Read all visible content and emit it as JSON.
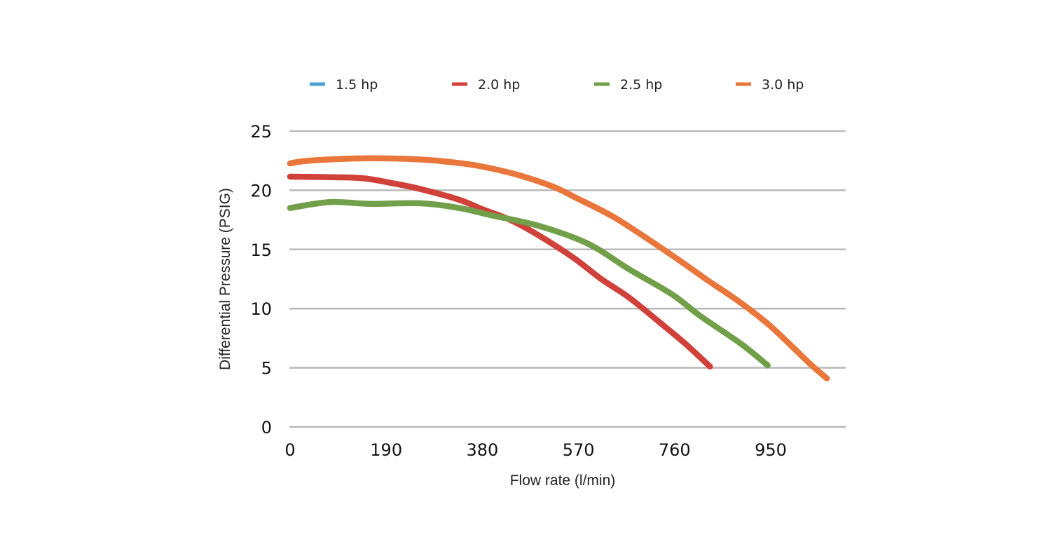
{
  "chart_data": {
    "type": "line",
    "title": "",
    "xlabel": "Flow rate (l/min)",
    "ylabel": "Differential Pressure (PSIG)",
    "xlim": [
      0,
      1100
    ],
    "ylim": [
      0,
      25
    ],
    "x_ticks": [
      "0",
      "190",
      "380",
      "570",
      "760",
      "950"
    ],
    "x_tick_values": [
      0,
      190,
      380,
      570,
      760,
      950
    ],
    "y_ticks": [
      "0",
      "5",
      "10",
      "15",
      "20",
      "25"
    ],
    "y_tick_values": [
      0,
      5,
      10,
      15,
      20,
      25
    ],
    "grid": "horizontal",
    "legend_position": "top",
    "series": [
      {
        "name": "1.5 hp",
        "color": "#4a9fd4",
        "points": []
      },
      {
        "name": "2.0 hp",
        "color": "#d0413a",
        "points": [
          [
            0,
            21.15
          ],
          [
            91,
            21.1
          ],
          [
            147,
            21.0
          ],
          [
            202,
            20.6
          ],
          [
            258,
            20.1
          ],
          [
            334,
            19.2
          ],
          [
            380,
            18.4
          ],
          [
            435,
            17.5
          ],
          [
            491,
            16.2
          ],
          [
            560,
            14.3
          ],
          [
            615,
            12.5
          ],
          [
            671,
            10.9
          ],
          [
            740,
            8.5
          ],
          [
            782,
            7.0
          ],
          [
            830,
            5.1
          ]
        ]
      },
      {
        "name": "2.5 hp",
        "color": "#72a04a",
        "points": [
          [
            0,
            18.5
          ],
          [
            79,
            19.0
          ],
          [
            160,
            18.85
          ],
          [
            258,
            18.9
          ],
          [
            334,
            18.5
          ],
          [
            396,
            17.9
          ],
          [
            491,
            17.0
          ],
          [
            588,
            15.5
          ],
          [
            671,
            13.3
          ],
          [
            755,
            11.2
          ],
          [
            810,
            9.4
          ],
          [
            892,
            7.0
          ],
          [
            944,
            5.2
          ]
        ]
      },
      {
        "name": "3.0 hp",
        "color": "#e9763a",
        "points": [
          [
            0,
            22.27
          ],
          [
            37,
            22.5
          ],
          [
            147,
            22.7
          ],
          [
            258,
            22.6
          ],
          [
            334,
            22.3
          ],
          [
            380,
            22.0
          ],
          [
            450,
            21.3
          ],
          [
            520,
            20.3
          ],
          [
            568,
            19.3
          ],
          [
            645,
            17.6
          ],
          [
            755,
            14.5
          ],
          [
            825,
            12.4
          ],
          [
            887,
            10.6
          ],
          [
            950,
            8.5
          ],
          [
            1026,
            5.4
          ],
          [
            1061,
            4.1
          ]
        ]
      }
    ]
  }
}
